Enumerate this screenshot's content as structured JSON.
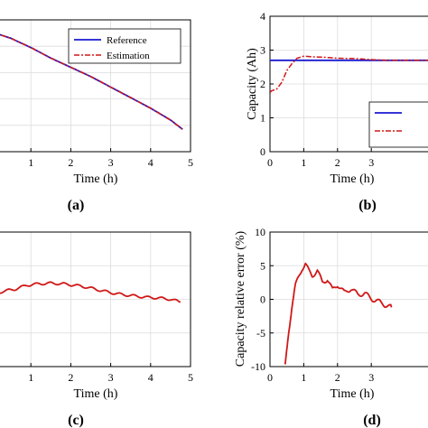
{
  "chart_data": [
    {
      "panel": "(a)",
      "type": "line",
      "xlabel": "Time (h)",
      "ylabel": "",
      "xlim": [
        0,
        5
      ],
      "ylim": [
        0,
        1
      ],
      "xticks": [
        "1",
        "2",
        "3",
        "4",
        "5"
      ],
      "yticks": [],
      "grid": true,
      "legend": {
        "placement": "top-right",
        "entries": [
          "Reference",
          "Estimation"
        ]
      },
      "series": [
        {
          "name": "Reference",
          "color": "#1a1ad0",
          "style": "solid",
          "x": [
            0.0,
            0.5,
            1.0,
            1.5,
            2.0,
            2.5,
            3.0,
            3.5,
            4.0,
            4.5,
            4.8
          ],
          "y": [
            0.91,
            0.86,
            0.79,
            0.71,
            0.64,
            0.57,
            0.49,
            0.41,
            0.33,
            0.24,
            0.17
          ]
        },
        {
          "name": "Estimation",
          "color": "#d01818",
          "style": "dashdot",
          "x": [
            0.0,
            0.5,
            1.0,
            1.5,
            2.0,
            2.5,
            3.0,
            3.5,
            4.0,
            4.5,
            4.8
          ],
          "y": [
            0.91,
            0.86,
            0.79,
            0.71,
            0.64,
            0.57,
            0.49,
            0.41,
            0.33,
            0.24,
            0.17
          ]
        }
      ]
    },
    {
      "panel": "(b)",
      "type": "line",
      "xlabel": "Time (h)",
      "ylabel": "Capacity (Ah)",
      "xlim": [
        0,
        5
      ],
      "ylim": [
        0,
        4
      ],
      "xticks": [
        "0",
        "1",
        "2",
        "3"
      ],
      "yticks": [
        "0",
        "1",
        "2",
        "3",
        "4"
      ],
      "grid": true,
      "legend": {
        "placement": "bottom-right",
        "entries": [
          "",
          ""
        ]
      },
      "series": [
        {
          "color": "#1a1ad0",
          "style": "solid",
          "x": [
            0,
            5
          ],
          "y": [
            2.7,
            2.7
          ]
        },
        {
          "color": "#d01818",
          "style": "dashdot",
          "x": [
            0.0,
            0.05,
            0.2,
            0.35,
            0.5,
            0.65,
            0.8,
            1.0,
            1.3,
            1.6,
            2.0,
            2.5,
            3.0,
            3.5,
            4.0,
            5.0
          ],
          "y": [
            1.75,
            1.8,
            1.85,
            2.05,
            2.4,
            2.6,
            2.76,
            2.82,
            2.8,
            2.79,
            2.76,
            2.75,
            2.72,
            2.7,
            2.7,
            2.7
          ]
        }
      ]
    },
    {
      "panel": "(c)",
      "type": "line",
      "xlabel": "Time (h)",
      "ylabel": "",
      "xlim": [
        0,
        5
      ],
      "ylim": [
        -10,
        10
      ],
      "xticks": [
        "1",
        "2",
        "3",
        "4",
        "5"
      ],
      "yticks": [],
      "grid": true,
      "series": [
        {
          "color": "#d01818",
          "style": "solid",
          "x": [
            0.0,
            0.3,
            0.6,
            0.9,
            1.2,
            1.5,
            1.8,
            2.1,
            2.4,
            2.7,
            3.0,
            3.3,
            3.6,
            3.9,
            4.2,
            4.5,
            4.75
          ],
          "y": [
            0.6,
            1.2,
            1.5,
            2.1,
            2.3,
            2.4,
            2.3,
            2.1,
            1.8,
            1.4,
            1.0,
            0.7,
            0.5,
            0.3,
            0.2,
            0.0,
            -0.4
          ]
        }
      ]
    },
    {
      "panel": "(d)",
      "type": "line",
      "xlabel": "Time (h)",
      "ylabel": "Capacity relative error (%)",
      "xlim": [
        0,
        5
      ],
      "ylim": [
        -10,
        10
      ],
      "xticks": [
        "0",
        "1",
        "2",
        "3"
      ],
      "yticks": [
        "-10",
        "-5",
        "0",
        "5",
        "10"
      ],
      "grid": true,
      "series": [
        {
          "color": "#d01818",
          "style": "solid",
          "x": [
            0.45,
            0.55,
            0.65,
            0.75,
            0.85,
            0.95,
            1.05,
            1.15,
            1.25,
            1.4,
            1.55,
            1.7,
            1.85,
            2.0,
            2.2,
            2.4,
            2.6,
            2.8,
            3.0,
            3.2,
            3.4,
            3.6
          ],
          "y": [
            -10.0,
            -5.0,
            -1.0,
            2.0,
            3.3,
            4.6,
            5.3,
            4.2,
            3.5,
            4.3,
            2.5,
            3.0,
            1.4,
            2.2,
            1.0,
            1.6,
            0.7,
            0.9,
            0.1,
            -0.3,
            -0.8,
            -1.2
          ]
        }
      ]
    }
  ],
  "panel_tags": [
    "(a)",
    "(b)",
    "(c)",
    "(d)"
  ]
}
